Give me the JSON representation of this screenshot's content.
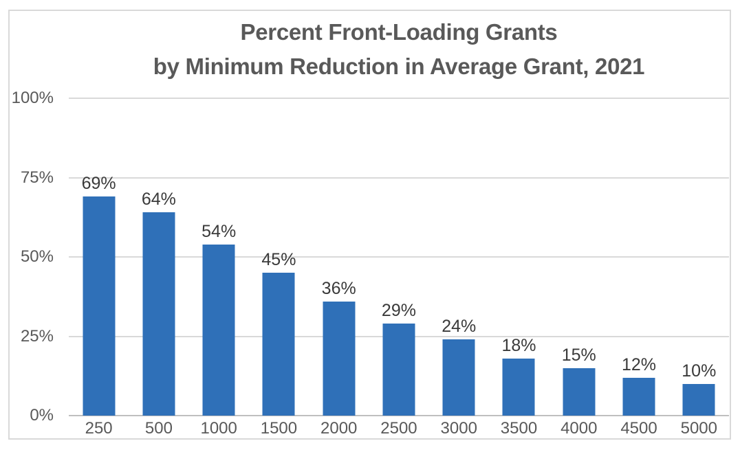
{
  "title": {
    "line1": "Percent Front-Loading Grants",
    "line2": "by Minimum Reduction in Average Grant, 2021"
  },
  "chart_data": {
    "type": "bar",
    "title": "Percent Front-Loading Grants by Minimum Reduction in Average Grant, 2021",
    "categories": [
      "250",
      "500",
      "1000",
      "1500",
      "2000",
      "2500",
      "3000",
      "3500",
      "4000",
      "4500",
      "5000"
    ],
    "values": [
      69,
      64,
      54,
      45,
      36,
      29,
      24,
      18,
      15,
      12,
      10
    ],
    "data_labels": [
      "69%",
      "64%",
      "54%",
      "45%",
      "36%",
      "29%",
      "24%",
      "18%",
      "15%",
      "12%",
      "10%"
    ],
    "xlabel": "",
    "ylabel": "",
    "ylim": [
      0,
      100
    ],
    "y_tick_values": [
      0,
      25,
      50,
      75,
      100
    ],
    "y_tick_labels": [
      "0%",
      "25%",
      "50%",
      "75%",
      "100%"
    ],
    "grid": true,
    "legend": "none",
    "colors": {
      "bar": "#2F70B8",
      "gridline": "#D9D9D9",
      "axis_line": "#BFBFBF",
      "axis_label": "#595959",
      "data_label": "#3A3A3A",
      "title": "#595959",
      "border": "#D9D9D9",
      "background": "#FFFFFF"
    }
  }
}
